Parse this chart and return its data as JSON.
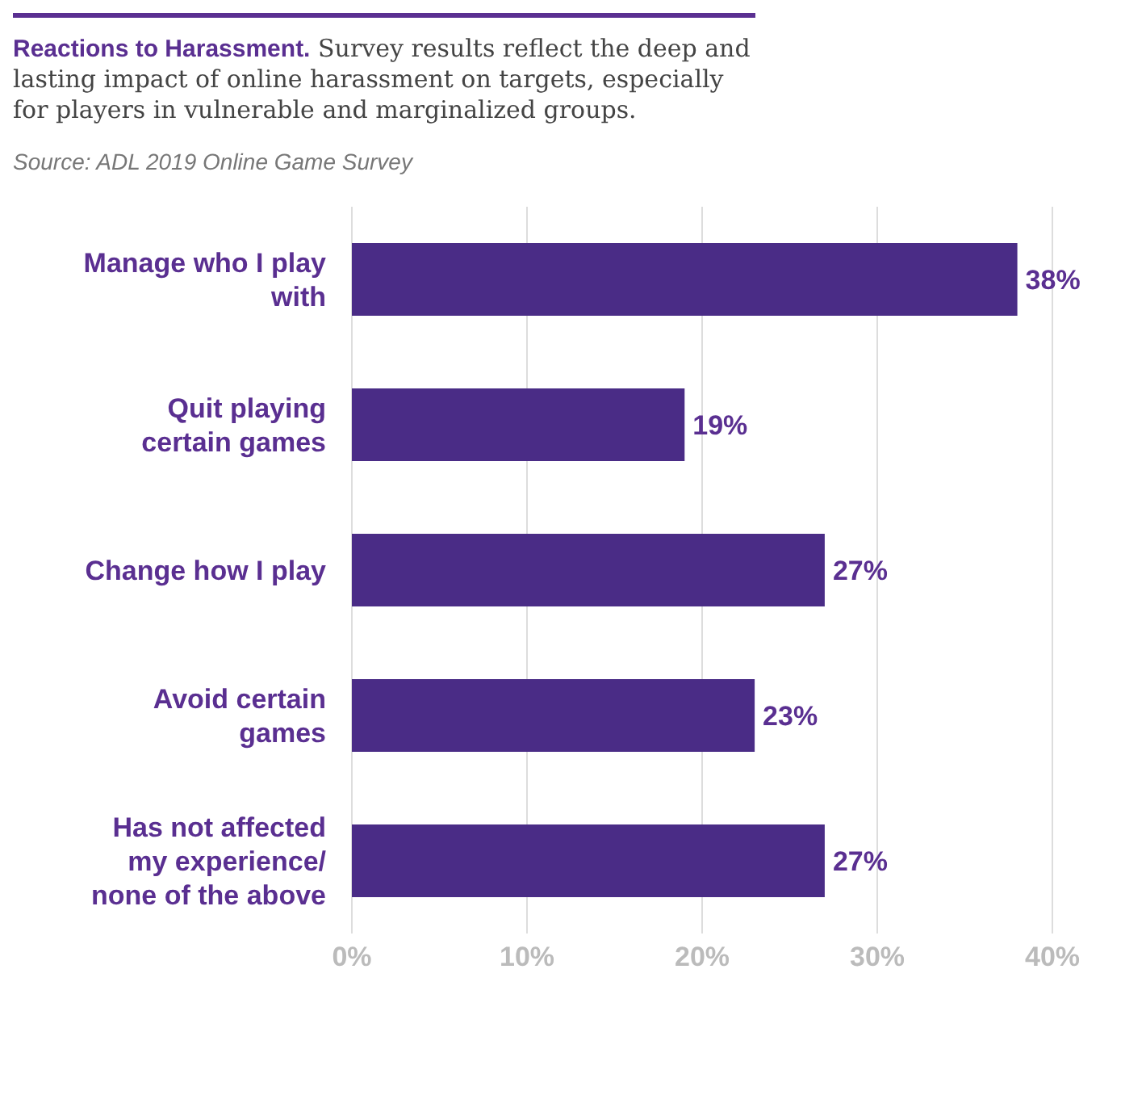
{
  "chart_data": {
    "type": "bar",
    "orientation": "horizontal",
    "title": "Reactions to Harassment.",
    "subtitle": "Survey results reflect the deep and lasting impact of online harassment on targets, especially for players in vulnerable and marginalized groups.",
    "annotations": [
      "Source: ADL 2019 Online Game Survey"
    ],
    "categories": [
      "Manage who I play with",
      "Quit playing certain games",
      "Change how I play",
      "Avoid certain games",
      "Has not affected my experience/ none of the above"
    ],
    "values": [
      38,
      19,
      27,
      23,
      27
    ],
    "value_labels": [
      "38%",
      "19%",
      "27%",
      "23%",
      "27%"
    ],
    "color": "#4a2c86",
    "xlim": [
      0,
      40
    ],
    "xticks": [
      {
        "value": 0,
        "label": "0%"
      },
      {
        "value": 10,
        "label": "10%"
      },
      {
        "value": 20,
        "label": "20%"
      },
      {
        "value": 30,
        "label": "30%"
      },
      {
        "value": 40,
        "label": "40%"
      }
    ],
    "grid": "x",
    "legend": false
  }
}
